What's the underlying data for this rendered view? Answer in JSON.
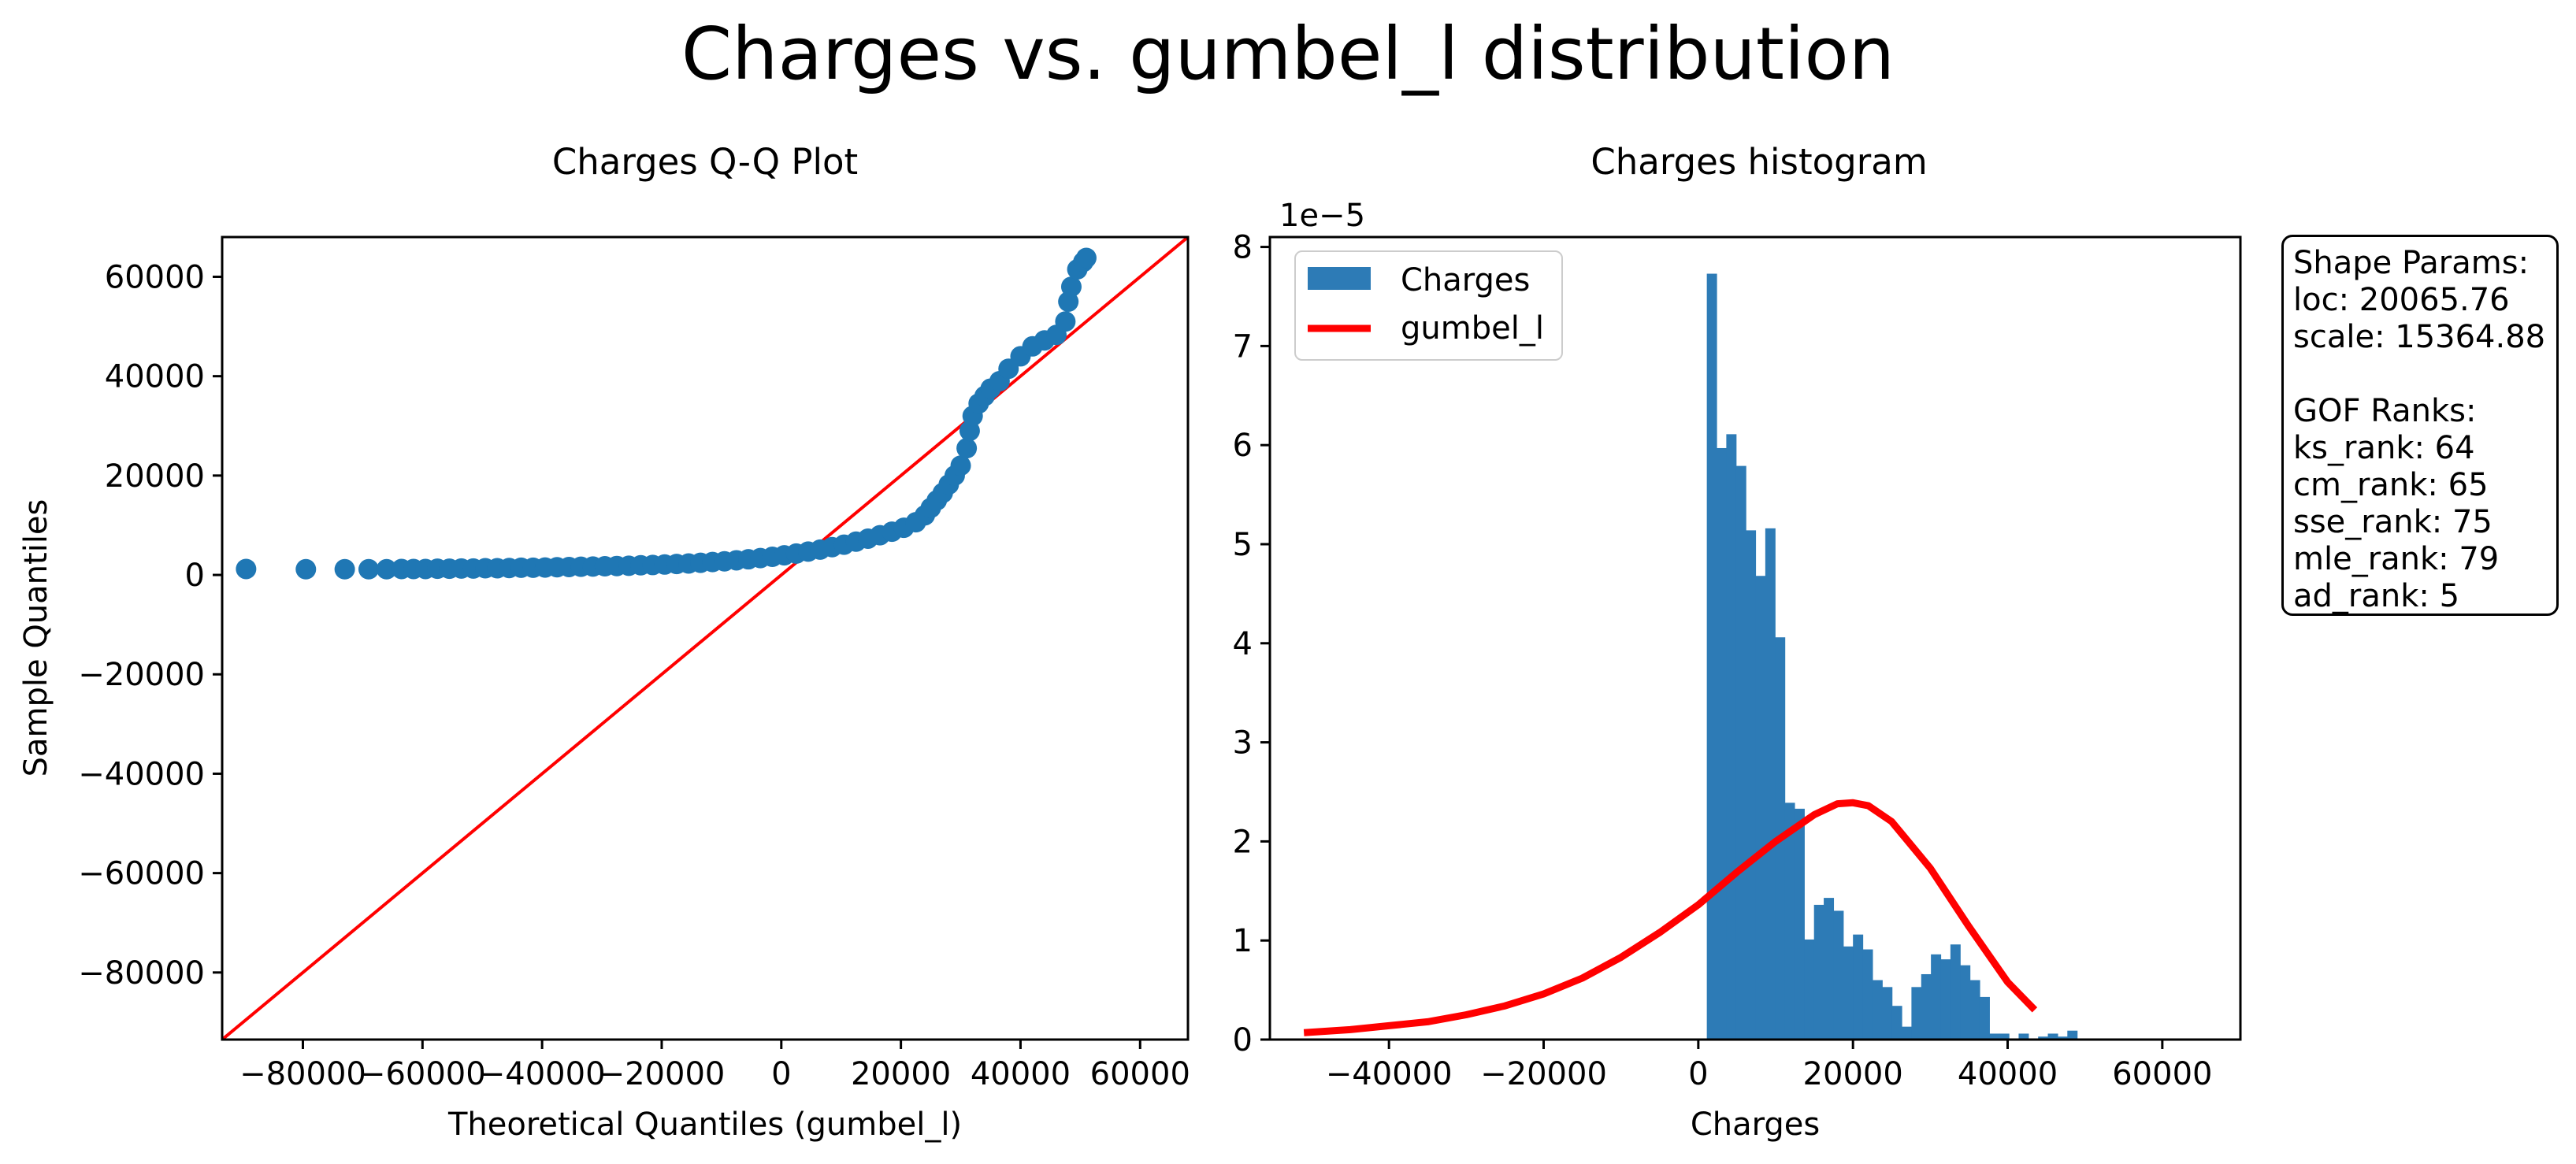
{
  "suptitle": "Charges vs. gumbel_l distribution",
  "info_box": {
    "text": "Shape Params:\nloc: 20065.76\nscale: 15364.88\n\nGOF Ranks:\nks_rank: 64\ncm_rank: 65\nsse_rank: 75\nmle_rank: 79\nad_rank: 5"
  },
  "colors": {
    "series": "#1f77b4",
    "hist": "#2d7bb6",
    "fit": "#ff0000",
    "ref_line": "#ff0000"
  },
  "chart_data": [
    {
      "type": "scatter",
      "title": "Charges Q-Q Plot",
      "xlabel": "Theoretical Quantiles (gumbel_l)",
      "ylabel": "Sample Quantiles",
      "xlim": [
        -93500,
        68000
      ],
      "ylim": [
        -93500,
        68000
      ],
      "xticks": [
        -80000,
        -60000,
        -40000,
        -20000,
        0,
        20000,
        40000,
        60000
      ],
      "xtick_labels": [
        "−80000",
        "−60000",
        "−40000",
        "−20000",
        "0",
        "20000",
        "40000",
        "60000"
      ],
      "yticks": [
        -80000,
        -60000,
        -40000,
        -20000,
        0,
        20000,
        40000,
        60000
      ],
      "ytick_labels": [
        "−80000",
        "−60000",
        "−40000",
        "−20000",
        "0",
        "20000",
        "40000",
        "60000"
      ],
      "reference_line": "y = x",
      "grid": false,
      "points": [
        [
          -89500,
          1200
        ],
        [
          -79500,
          1150
        ],
        [
          -73000,
          1150
        ],
        [
          -69000,
          1150
        ],
        [
          -66000,
          1150
        ],
        [
          -63500,
          1200
        ],
        [
          -61500,
          1200
        ],
        [
          -59500,
          1200
        ],
        [
          -57500,
          1250
        ],
        [
          -55500,
          1250
        ],
        [
          -53500,
          1300
        ],
        [
          -51500,
          1300
        ],
        [
          -49500,
          1350
        ],
        [
          -47500,
          1350
        ],
        [
          -45500,
          1400
        ],
        [
          -43500,
          1450
        ],
        [
          -41500,
          1450
        ],
        [
          -39500,
          1500
        ],
        [
          -37500,
          1550
        ],
        [
          -35500,
          1600
        ],
        [
          -33500,
          1650
        ],
        [
          -31500,
          1700
        ],
        [
          -29500,
          1750
        ],
        [
          -27500,
          1800
        ],
        [
          -25500,
          1850
        ],
        [
          -23500,
          1950
        ],
        [
          -21500,
          2000
        ],
        [
          -19500,
          2100
        ],
        [
          -17500,
          2200
        ],
        [
          -15500,
          2300
        ],
        [
          -13500,
          2450
        ],
        [
          -11500,
          2600
        ],
        [
          -9500,
          2750
        ],
        [
          -7500,
          2950
        ],
        [
          -5500,
          3150
        ],
        [
          -3500,
          3400
        ],
        [
          -1500,
          3650
        ],
        [
          500,
          3950
        ],
        [
          2500,
          4300
        ],
        [
          4500,
          4700
        ],
        [
          6500,
          5100
        ],
        [
          8500,
          5600
        ],
        [
          10500,
          6100
        ],
        [
          12500,
          6700
        ],
        [
          14500,
          7300
        ],
        [
          16500,
          8000
        ],
        [
          18500,
          8700
        ],
        [
          20500,
          9500
        ],
        [
          22500,
          10600
        ],
        [
          24000,
          12000
        ],
        [
          25000,
          13500
        ],
        [
          26000,
          15000
        ],
        [
          27000,
          16500
        ],
        [
          28000,
          18200
        ],
        [
          29000,
          20000
        ],
        [
          30000,
          22000
        ],
        [
          31000,
          25500
        ],
        [
          31500,
          29000
        ],
        [
          32000,
          32000
        ],
        [
          33000,
          34500
        ],
        [
          34000,
          36000
        ],
        [
          35000,
          37500
        ],
        [
          36500,
          39000
        ],
        [
          38000,
          41500
        ],
        [
          40000,
          44000
        ],
        [
          42000,
          46000
        ],
        [
          44000,
          47200
        ],
        [
          46000,
          48300
        ],
        [
          47500,
          51000
        ],
        [
          48000,
          55000
        ],
        [
          48500,
          58000
        ],
        [
          49500,
          61500
        ],
        [
          50500,
          63000
        ],
        [
          51000,
          63800
        ]
      ]
    },
    {
      "type": "bar",
      "title": "Charges histogram",
      "xlabel": "Charges",
      "ylabel": "",
      "y_scale_label": "1e−5",
      "xlim": [
        -55400,
        70100
      ],
      "ylim": [
        0,
        8.1
      ],
      "xticks": [
        -40000,
        -20000,
        0,
        20000,
        40000,
        60000
      ],
      "xtick_labels": [
        "−40000",
        "−20000",
        "0",
        "20000",
        "40000",
        "60000"
      ],
      "yticks": [
        0,
        1,
        2,
        3,
        4,
        5,
        6,
        7,
        8
      ],
      "ytick_labels": [
        "0",
        "1",
        "2",
        "3",
        "4",
        "5",
        "6",
        "7",
        "8"
      ],
      "legend_position": "upper-left",
      "series": [
        {
          "name": "Charges",
          "kind": "histogram",
          "bin_start": 1100,
          "bin_width": 1260,
          "values": [
            7.73,
            5.97,
            6.11,
            5.79,
            5.14,
            4.68,
            5.16,
            4.06,
            2.39,
            2.33,
            1.01,
            1.36,
            1.43,
            1.3,
            0.94,
            1.06,
            0.91,
            0.6,
            0.53,
            0.34,
            0.13,
            0.53,
            0.66,
            0.86,
            0.81,
            0.96,
            0.75,
            0.6,
            0.43,
            0.06,
            0.06,
            0.0,
            0.06,
            0.0,
            0.03,
            0.06,
            0.03,
            0.09
          ]
        },
        {
          "name": "gumbel_l",
          "kind": "line",
          "x": [
            -51000,
            -45000,
            -40000,
            -35000,
            -30000,
            -25000,
            -20000,
            -15000,
            -10000,
            -5000,
            0,
            5000,
            10000,
            15000,
            18000,
            20000,
            22000,
            25000,
            30000,
            35000,
            40000,
            43500
          ],
          "y": [
            0.07,
            0.1,
            0.14,
            0.18,
            0.25,
            0.34,
            0.46,
            0.62,
            0.83,
            1.08,
            1.36,
            1.69,
            2.0,
            2.27,
            2.38,
            2.39,
            2.36,
            2.2,
            1.73,
            1.14,
            0.58,
            0.3
          ]
        }
      ]
    }
  ]
}
